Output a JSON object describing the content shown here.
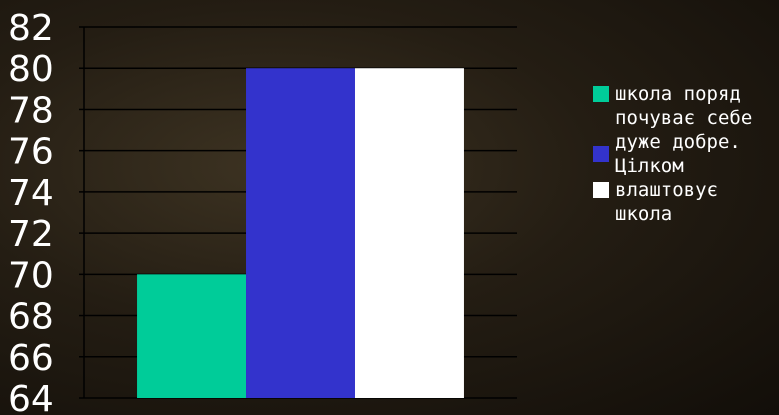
{
  "chart_data": {
    "type": "bar",
    "categories": [
      ""
    ],
    "series": [
      {
        "name": "школа поряд",
        "values": [
          70
        ],
        "color": "#00cc99"
      },
      {
        "name": "почуває себе\nдуже добре.\nЦілком",
        "values": [
          80
        ],
        "color": "#3333cc"
      },
      {
        "name": "влаштовує\nшкола",
        "values": [
          80
        ],
        "color": "#ffffff"
      }
    ],
    "title": "",
    "xlabel": "",
    "ylabel": "",
    "ylim": [
      64,
      82
    ],
    "yticks": [
      "64",
      "66",
      "68",
      "70",
      "72",
      "74",
      "76",
      "78",
      "80",
      "82"
    ],
    "grid": true,
    "legend_position": "right"
  }
}
